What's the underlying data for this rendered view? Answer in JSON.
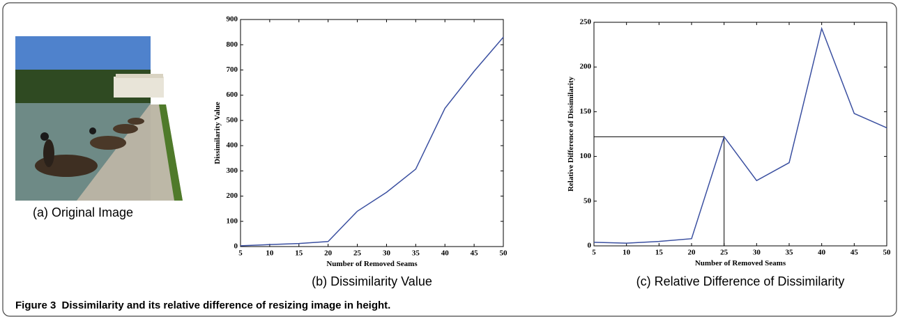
{
  "figure": {
    "image_caption": "(a) Original Image",
    "caption_label": "Figure 3",
    "caption_text": "Dissimilarity and its relative difference of resizing image in height."
  },
  "chart_data": [
    {
      "type": "line",
      "caption": "(b) Dissimilarity Value",
      "x_label": "Number of Removed Seams",
      "y_label": "Dissimilarity Value",
      "x": [
        5,
        10,
        15,
        20,
        25,
        30,
        35,
        40,
        45,
        50
      ],
      "values": [
        3,
        8,
        12,
        20,
        140,
        215,
        307,
        548,
        695,
        830
      ],
      "color": "#3a4fa0",
      "xlim": [
        5,
        50
      ],
      "xticks": [
        5,
        10,
        15,
        20,
        25,
        30,
        35,
        40,
        45,
        50
      ],
      "ylim": [
        0,
        900
      ],
      "yticks": [
        0,
        100,
        200,
        300,
        400,
        500,
        600,
        700,
        800,
        900
      ]
    },
    {
      "type": "line",
      "caption": "(c) Relative Difference of Dissimilarity",
      "x_label": "Number of Removed Seams",
      "y_label": "Relative Difference of Dissimilarity",
      "x": [
        5,
        10,
        15,
        20,
        25,
        30,
        35,
        40,
        45,
        50
      ],
      "values": [
        4,
        3,
        5,
        8,
        122,
        73,
        93,
        243,
        148,
        132
      ],
      "color": "#3a4fa0",
      "xlim": [
        5,
        50
      ],
      "xticks": [
        5,
        10,
        15,
        20,
        25,
        30,
        35,
        40,
        45,
        50
      ],
      "ylim": [
        0,
        250
      ],
      "yticks": [
        0,
        50,
        100,
        150,
        200,
        250
      ]
    }
  ]
}
